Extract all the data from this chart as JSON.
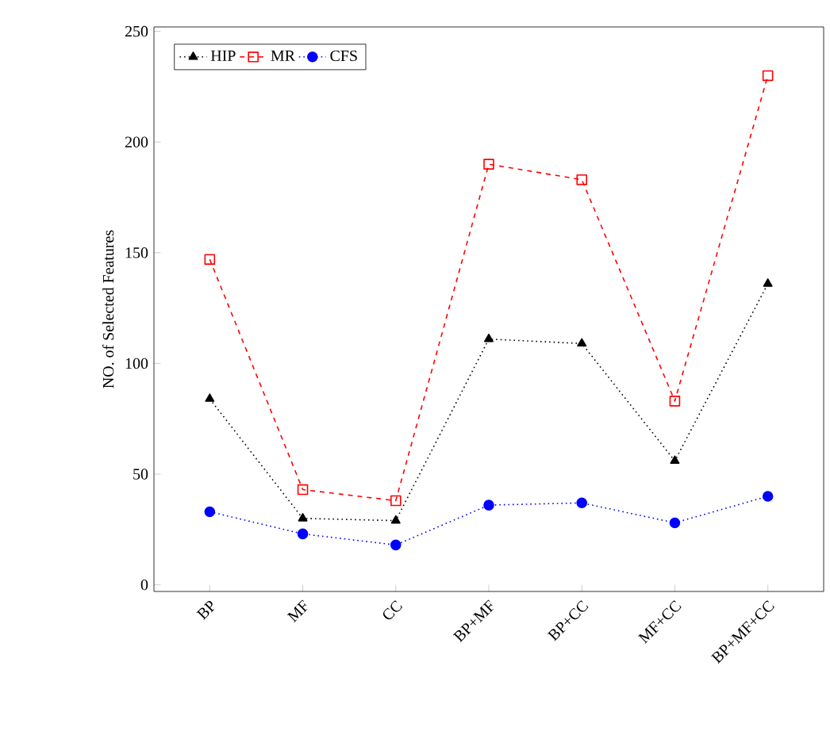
{
  "chart_data": {
    "type": "line",
    "ylabel": "NO. of Selected Features",
    "categories": [
      "BP",
      "MF",
      "CC",
      "BP+MF",
      "BP+CC",
      "MF+CC",
      "BP+MF+CC"
    ],
    "series": [
      {
        "name": "HIP",
        "color": "#000000",
        "marker": "triangle",
        "line_style": "dotted",
        "values": [
          84,
          30,
          29,
          111,
          109,
          56,
          136
        ]
      },
      {
        "name": "MR",
        "color": "#ff0000",
        "marker": "square",
        "line_style": "dashed",
        "values": [
          147,
          43,
          38,
          190,
          183,
          83,
          230
        ]
      },
      {
        "name": "CFS",
        "color": "#0000ff",
        "marker": "circle",
        "line_style": "dotted",
        "values": [
          33,
          23,
          18,
          36,
          37,
          28,
          40
        ]
      }
    ],
    "ylim": [
      -3,
      252
    ],
    "yticks": [
      0,
      50,
      100,
      150,
      200,
      250
    ],
    "legend": "top left",
    "grid": false
  }
}
